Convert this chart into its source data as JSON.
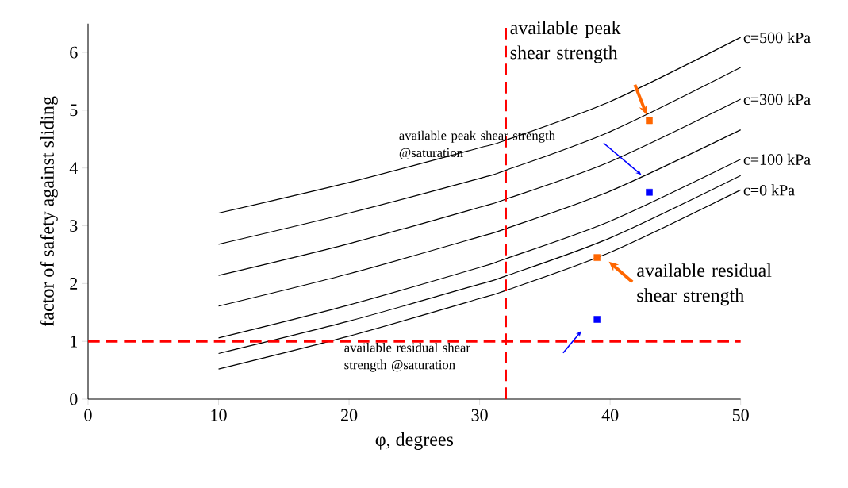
{
  "chart_data": {
    "type": "line",
    "xlabel": "φ, degrees",
    "ylabel": "factor of safety against sliding",
    "xlim": [
      0,
      50
    ],
    "ylim": [
      0,
      6.5
    ],
    "xticks": [
      0,
      10,
      20,
      30,
      40,
      50
    ],
    "yticks": [
      0,
      1,
      2,
      3,
      4,
      5,
      6
    ],
    "series": [
      {
        "name": "c=500 kPa",
        "color": "#000000",
        "x": [
          10,
          20,
          30,
          32,
          40,
          50
        ],
        "values": [
          3.22,
          3.75,
          4.35,
          4.48,
          5.15,
          6.26
        ]
      },
      {
        "color": "#000000",
        "x": [
          10,
          20,
          30,
          32,
          40,
          50
        ],
        "values": [
          2.68,
          3.22,
          3.82,
          3.96,
          4.63,
          5.74
        ]
      },
      {
        "name": "c=300 kPa",
        "color": "#000000",
        "x": [
          10,
          20,
          30,
          32,
          40,
          50
        ],
        "values": [
          2.14,
          2.69,
          3.32,
          3.46,
          4.11,
          5.19
        ]
      },
      {
        "color": "#000000",
        "x": [
          10,
          20,
          30,
          32,
          40,
          50
        ],
        "values": [
          1.61,
          2.17,
          2.81,
          2.95,
          3.6,
          4.66
        ]
      },
      {
        "name": "c=100 kPa",
        "color": "#000000",
        "x": [
          10,
          20,
          30,
          32,
          40,
          50
        ],
        "values": [
          1.06,
          1.63,
          2.28,
          2.43,
          3.08,
          4.15
        ]
      },
      {
        "color": "#000000",
        "x": [
          10,
          20,
          30,
          32,
          40,
          50
        ],
        "values": [
          0.79,
          1.35,
          1.99,
          2.13,
          2.79,
          3.87
        ]
      },
      {
        "name": "c=0 kPa",
        "color": "#000000",
        "x": [
          10,
          20,
          30,
          32,
          40,
          50
        ],
        "values": [
          0.52,
          1.09,
          1.74,
          1.88,
          2.54,
          3.62
        ]
      },
      {
        "type": "scatter",
        "marker": "square",
        "color": "#ff6600",
        "x": [
          43,
          39
        ],
        "values": [
          4.82,
          2.45
        ]
      },
      {
        "type": "scatter",
        "marker": "square",
        "color": "#0000ff",
        "x": [
          43,
          39
        ],
        "values": [
          3.58,
          1.38
        ]
      }
    ],
    "ref_lines": [
      {
        "axis": "y",
        "value": 1,
        "color": "#ff0000",
        "line_style": "dashed"
      },
      {
        "axis": "x",
        "value": 32,
        "color": "#ff0000",
        "line_style": "dashed"
      }
    ],
    "annotations": [
      "available peak shear strength",
      "available peak shear strength @saturation",
      "available residual shear strength",
      "available residual shear strength @saturation"
    ]
  }
}
